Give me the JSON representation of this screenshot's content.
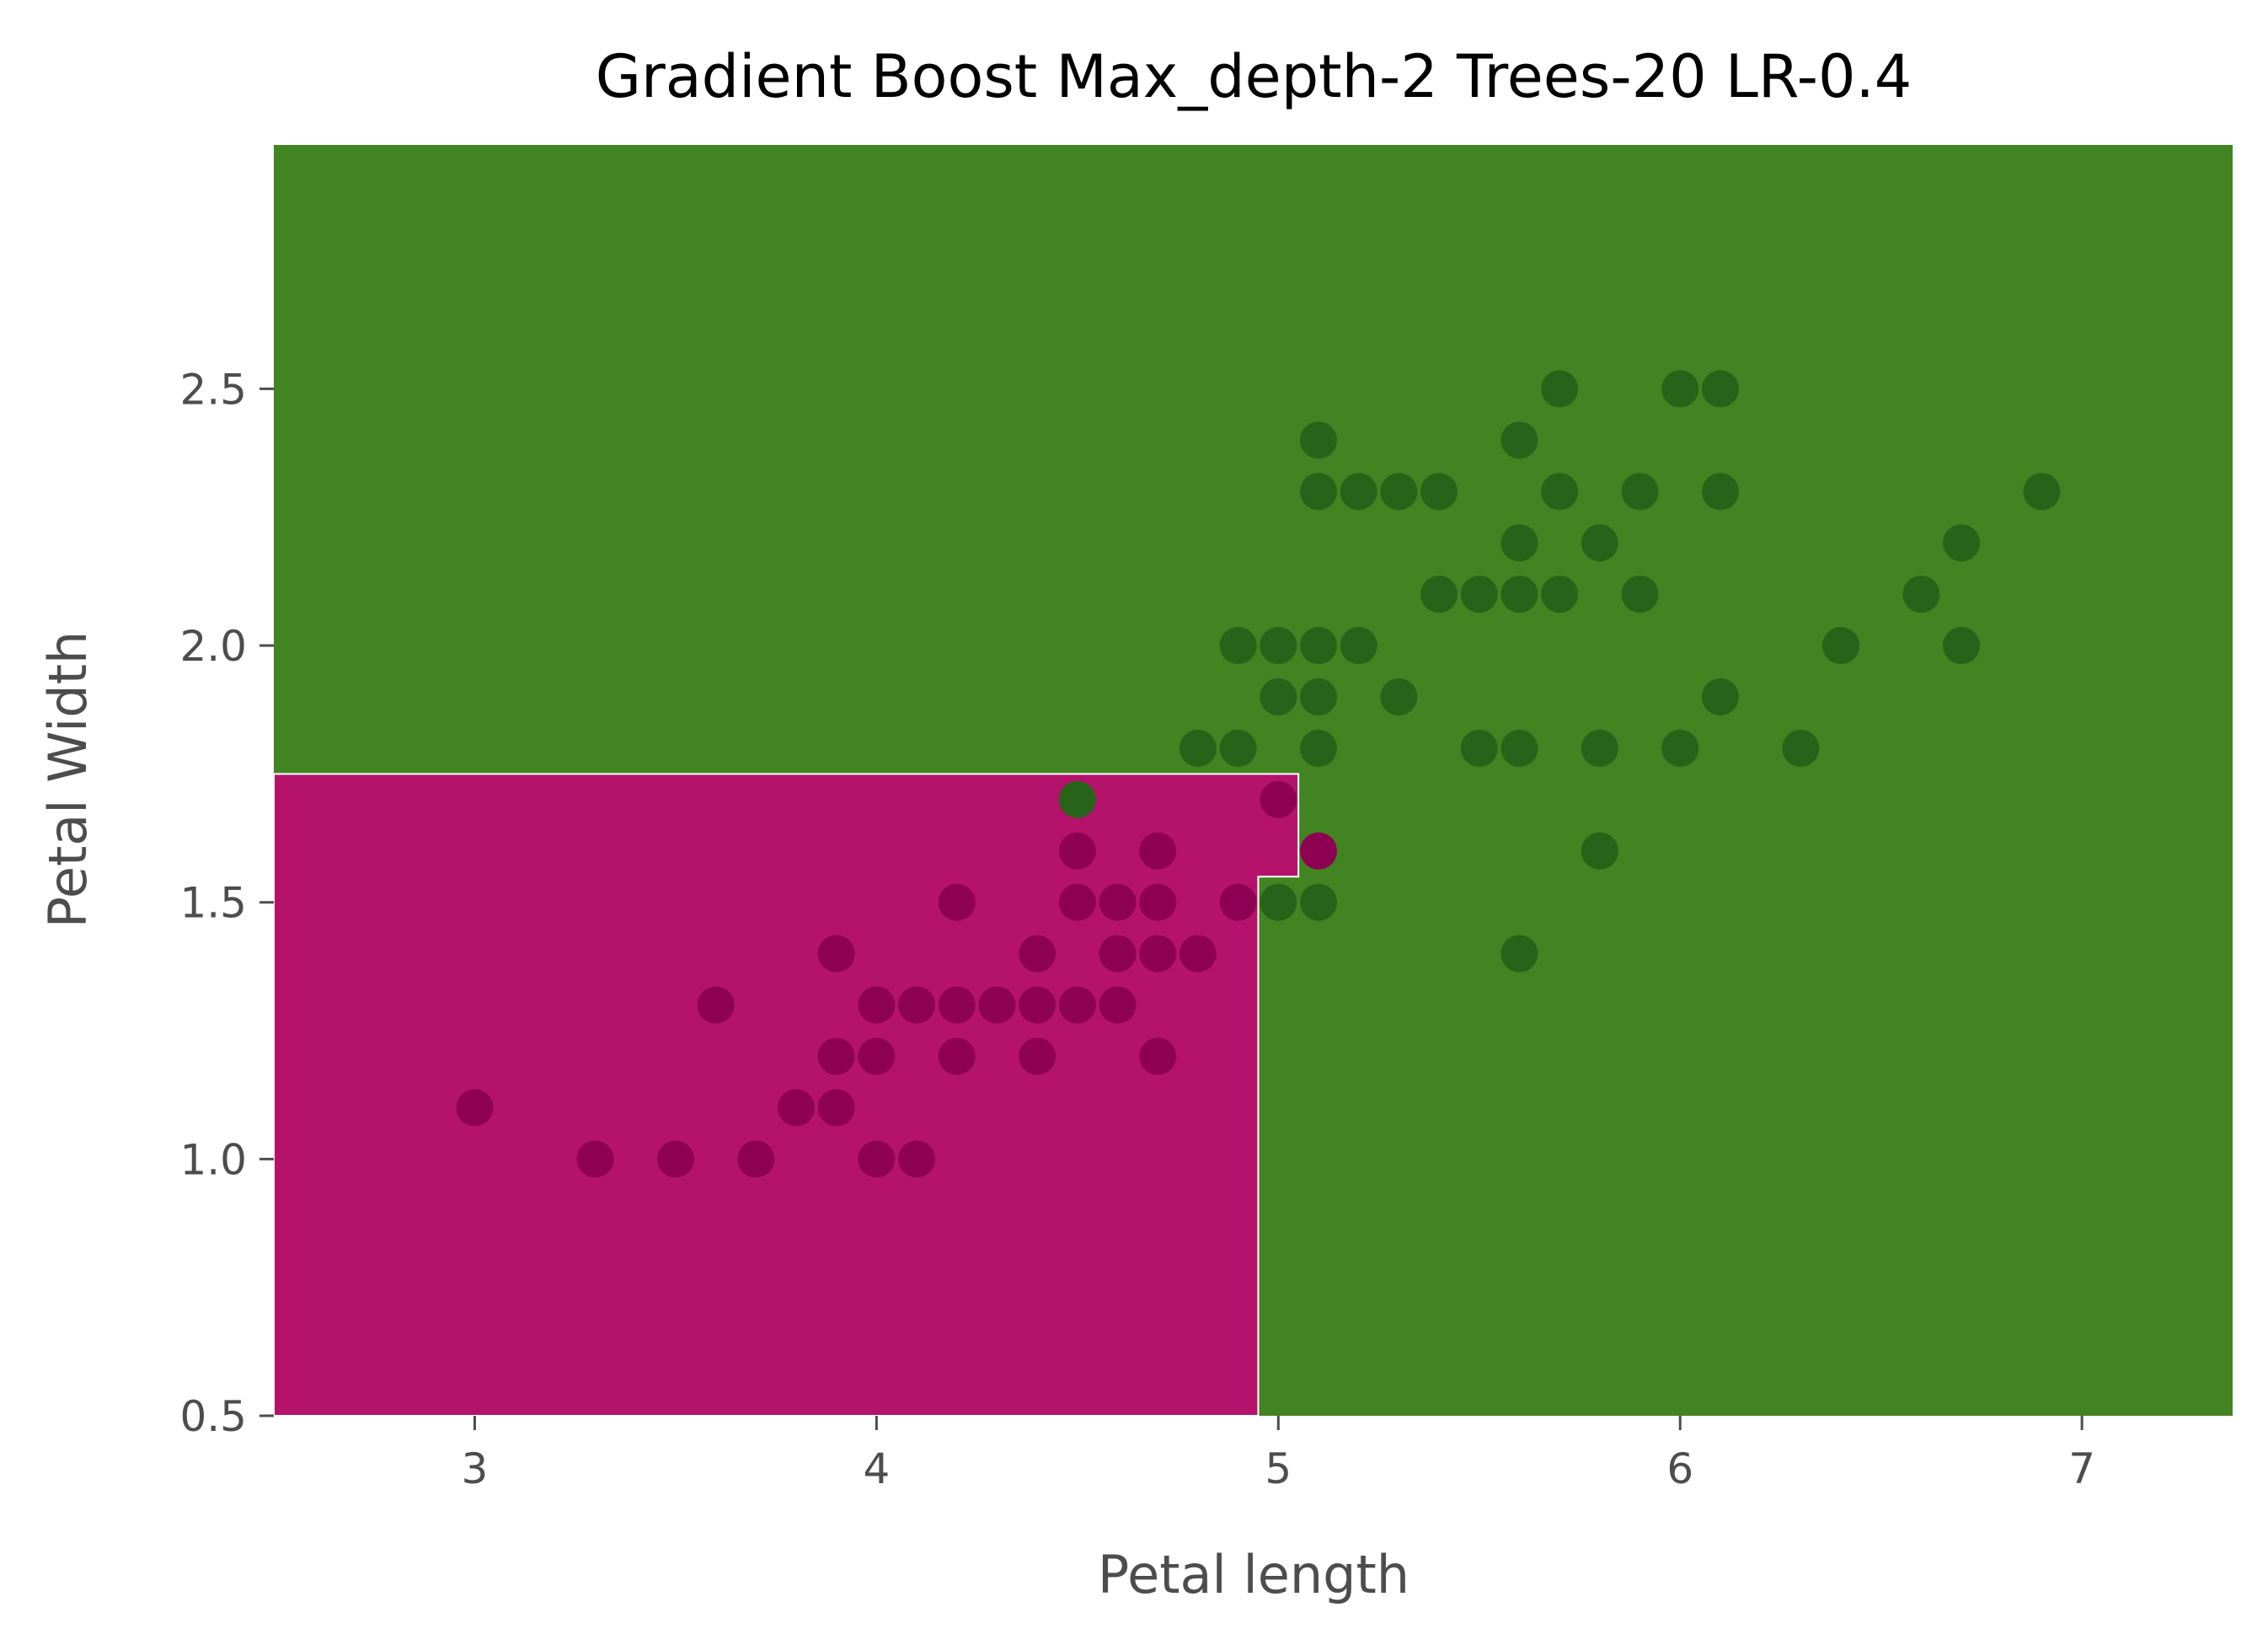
{
  "chart_data": {
    "type": "scatter",
    "title": "Gradient Boost Max_depth-2 Trees-20 LR-0.4",
    "xlabel": "Petal length",
    "ylabel": "Petal Width",
    "xlim": [
      2.5,
      7.375
    ],
    "ylim": [
      0.5,
      2.975
    ],
    "x_ticks": [
      3,
      4,
      5,
      6,
      7
    ],
    "y_ticks": [
      0.5,
      1.0,
      1.5,
      2.0,
      2.5
    ],
    "x_tick_labels": [
      "3",
      "4",
      "5",
      "6",
      "7"
    ],
    "y_tick_labels": [
      "0.5",
      "1.0",
      "1.5",
      "2.0",
      "2.5"
    ],
    "grid": false,
    "legend": "none",
    "colors": {
      "region_versicolor": "#b5136b",
      "region_virginica": "#418421",
      "point_versicolor": "#8e0152",
      "point_virginica": "#276419",
      "boundary": "#ffffff"
    },
    "decision_regions": {
      "versicolor_polygon": [
        [
          2.5,
          0.5
        ],
        [
          2.5,
          1.75
        ],
        [
          5.05,
          1.75
        ],
        [
          5.05,
          1.55
        ],
        [
          4.95,
          1.55
        ],
        [
          4.95,
          0.5
        ]
      ]
    },
    "series": [
      {
        "class": "versicolor",
        "points": [
          [
            3.0,
            1.1
          ],
          [
            3.3,
            1.0
          ],
          [
            3.5,
            1.0
          ],
          [
            3.6,
            1.3
          ],
          [
            3.7,
            1.0
          ],
          [
            3.8,
            1.1
          ],
          [
            3.9,
            1.1
          ],
          [
            3.9,
            1.2
          ],
          [
            3.9,
            1.4
          ],
          [
            4.0,
            1.0
          ],
          [
            4.0,
            1.2
          ],
          [
            4.0,
            1.3
          ],
          [
            4.1,
            1.0
          ],
          [
            4.1,
            1.3
          ],
          [
            4.2,
            1.2
          ],
          [
            4.2,
            1.3
          ],
          [
            4.2,
            1.5
          ],
          [
            4.3,
            1.3
          ],
          [
            4.4,
            1.2
          ],
          [
            4.4,
            1.3
          ],
          [
            4.4,
            1.4
          ],
          [
            4.5,
            1.3
          ],
          [
            4.5,
            1.5
          ],
          [
            4.5,
            1.6
          ],
          [
            4.6,
            1.3
          ],
          [
            4.6,
            1.4
          ],
          [
            4.6,
            1.5
          ],
          [
            4.7,
            1.2
          ],
          [
            4.7,
            1.4
          ],
          [
            4.7,
            1.5
          ],
          [
            4.7,
            1.6
          ],
          [
            4.8,
            1.4
          ],
          [
            4.9,
            1.5
          ],
          [
            5.0,
            1.7
          ],
          [
            5.1,
            1.6
          ]
        ]
      },
      {
        "class": "virginica",
        "points": [
          [
            4.5,
            1.7
          ],
          [
            4.8,
            1.8
          ],
          [
            4.9,
            1.8
          ],
          [
            4.9,
            2.0
          ],
          [
            5.0,
            1.5
          ],
          [
            5.0,
            1.9
          ],
          [
            5.0,
            2.0
          ],
          [
            5.1,
            1.5
          ],
          [
            5.1,
            1.8
          ],
          [
            5.1,
            1.9
          ],
          [
            5.1,
            2.0
          ],
          [
            5.1,
            2.3
          ],
          [
            5.1,
            2.4
          ],
          [
            5.2,
            2.0
          ],
          [
            5.2,
            2.3
          ],
          [
            5.3,
            1.9
          ],
          [
            5.3,
            2.3
          ],
          [
            5.4,
            2.1
          ],
          [
            5.4,
            2.3
          ],
          [
            5.5,
            1.8
          ],
          [
            5.5,
            2.1
          ],
          [
            5.6,
            1.4
          ],
          [
            5.6,
            1.8
          ],
          [
            5.6,
            2.1
          ],
          [
            5.6,
            2.2
          ],
          [
            5.6,
            2.4
          ],
          [
            5.7,
            2.1
          ],
          [
            5.7,
            2.3
          ],
          [
            5.7,
            2.5
          ],
          [
            5.8,
            1.6
          ],
          [
            5.8,
            1.8
          ],
          [
            5.8,
            2.2
          ],
          [
            5.9,
            2.1
          ],
          [
            5.9,
            2.3
          ],
          [
            6.0,
            1.8
          ],
          [
            6.0,
            2.5
          ],
          [
            6.1,
            1.9
          ],
          [
            6.1,
            2.3
          ],
          [
            6.1,
            2.5
          ],
          [
            6.3,
            1.8
          ],
          [
            6.4,
            2.0
          ],
          [
            6.6,
            2.1
          ],
          [
            6.7,
            2.0
          ],
          [
            6.7,
            2.2
          ],
          [
            6.9,
            2.3
          ]
        ]
      }
    ]
  }
}
